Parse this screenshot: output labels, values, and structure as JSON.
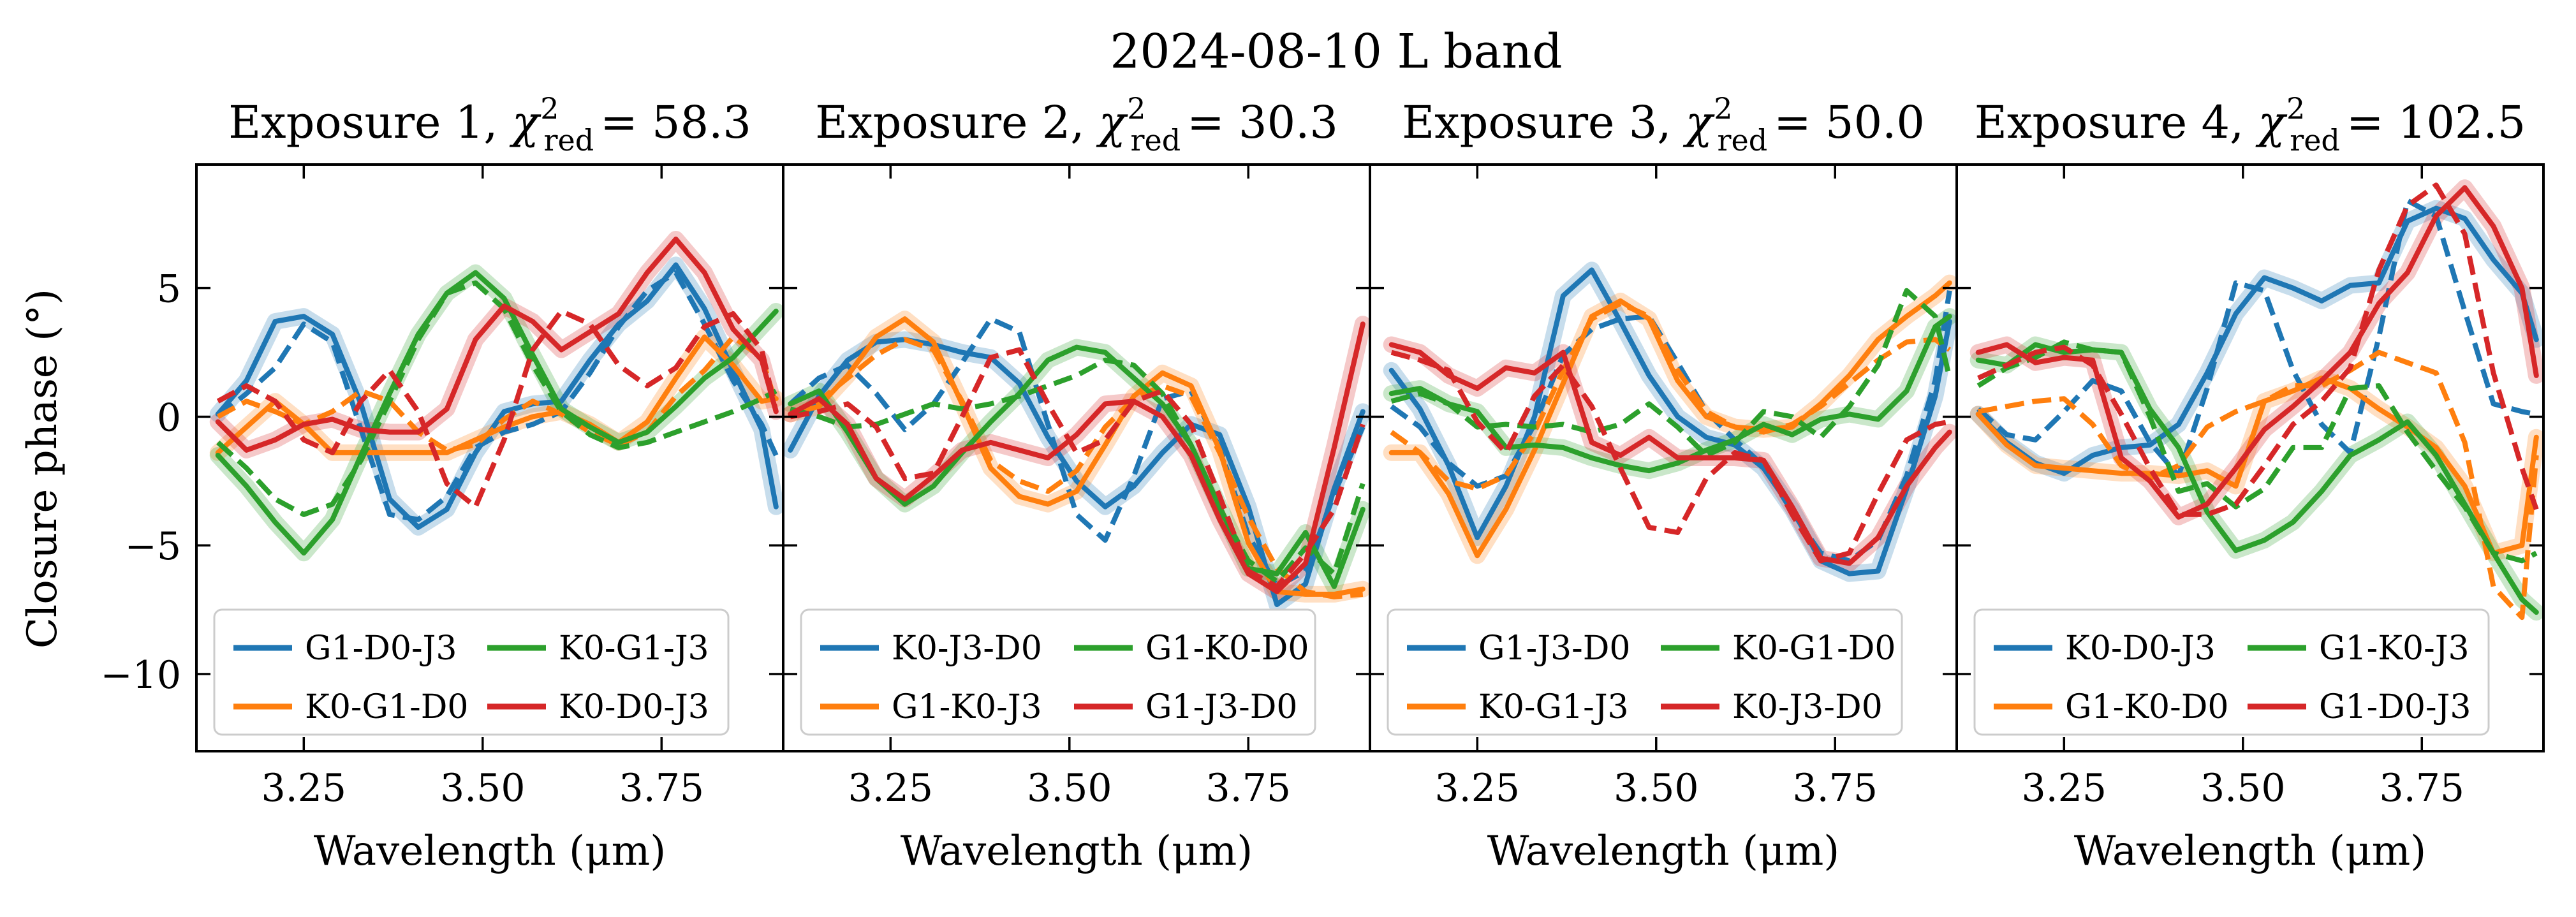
{
  "suptitle": "2024-08-10 L band",
  "ylabel": "Closure phase (°)",
  "xlabel": "Wavelength (μm)",
  "colors": {
    "blue": "#1f77b4",
    "orange": "#ff7f0e",
    "green": "#2ca02c",
    "red": "#d62728"
  },
  "chart_data": [
    {
      "type": "line",
      "title_prefix": "Exposure 1,",
      "chi2": "58.3",
      "xlim": [
        3.1,
        3.92
      ],
      "ylim": [
        -13,
        9.8
      ],
      "xticks": [
        3.25,
        3.5,
        3.75
      ],
      "xtick_labels": [
        "3.25",
        "3.50",
        "3.75"
      ],
      "yticks": [
        5,
        0,
        -5,
        -10
      ],
      "ytick_labels": [
        "5",
        "0",
        "−5",
        "−10"
      ],
      "x": [
        3.13,
        3.17,
        3.21,
        3.25,
        3.29,
        3.33,
        3.37,
        3.41,
        3.45,
        3.49,
        3.53,
        3.57,
        3.61,
        3.65,
        3.69,
        3.73,
        3.77,
        3.81,
        3.85,
        3.89,
        3.91
      ],
      "series": [
        {
          "name": "G1-D0-J3",
          "color": "#1f77b4",
          "data": [
            0.1,
            1.4,
            3.7,
            3.9,
            3.2,
            0.5,
            -3.2,
            -4.3,
            -3.6,
            -1.4,
            0.2,
            0.5,
            0.6,
            2.2,
            3.6,
            4.5,
            5.9,
            4.2,
            1.8,
            -0.5,
            -3.5
          ],
          "model": [
            0,
            0.9,
            1.9,
            3.6,
            2.9,
            -0.5,
            -3.8,
            -4.0,
            -3.1,
            -1.2,
            -0.6,
            -0.3,
            0.2,
            1.7,
            3.5,
            4.9,
            5.6,
            3.6,
            1.4,
            -0.3,
            -1.5
          ]
        },
        {
          "name": "K0-G1-D0",
          "color": "#ff7f0e",
          "data": [
            -1.4,
            -0.4,
            0.6,
            -0.3,
            -1.4,
            -1.4,
            -1.4,
            -1.4,
            -1.4,
            -0.9,
            -0.4,
            0.0,
            0.2,
            -0.3,
            -1.0,
            -0.2,
            1.5,
            3.1,
            2.0,
            0.6,
            0.7
          ],
          "model": [
            0,
            0.6,
            0.2,
            -0.3,
            0.2,
            1.0,
            0.6,
            -0.6,
            -1.3,
            -1.1,
            -0.1,
            0.6,
            0.1,
            -0.6,
            -1.1,
            -0.6,
            0.8,
            1.8,
            3.1,
            2.3,
            0.5
          ]
        },
        {
          "name": "K0-G1-J3",
          "color": "#2ca02c",
          "data": [
            -1.5,
            -2.7,
            -4.1,
            -5.3,
            -4.0,
            -1.5,
            0.9,
            3.2,
            4.8,
            5.6,
            4.6,
            2.4,
            0.3,
            -0.4,
            -1.0,
            -0.6,
            0.4,
            1.5,
            2.3,
            3.5,
            4.1
          ],
          "model": [
            -1.0,
            -2.0,
            -3.2,
            -3.8,
            -3.4,
            -1.7,
            0.6,
            3.0,
            4.8,
            5.2,
            4.2,
            2.0,
            0.2,
            -0.7,
            -1.2,
            -1.0,
            -0.6,
            -0.2,
            0.2,
            0.7,
            1.0
          ]
        },
        {
          "name": "K0-D0-J3",
          "color": "#d62728",
          "data": [
            -0.2,
            -1.3,
            -0.9,
            -0.3,
            -0.1,
            -0.5,
            -0.6,
            -0.6,
            0.3,
            3.0,
            4.3,
            3.7,
            2.6,
            3.3,
            4.0,
            5.6,
            6.9,
            5.6,
            3.4,
            2.2,
            0.2
          ],
          "model": [
            0.6,
            1.2,
            0.6,
            -0.9,
            -1.4,
            0.6,
            1.8,
            0.2,
            -2.6,
            -3.5,
            -0.9,
            2.6,
            4.1,
            3.6,
            2.0,
            1.2,
            1.9,
            3.5,
            4.0,
            2.6,
            0.2
          ]
        }
      ],
      "legend": [
        {
          "label": "G1-D0-J3",
          "color": "#1f77b4"
        },
        {
          "label": "K0-G1-J3",
          "color": "#2ca02c"
        },
        {
          "label": "K0-G1-D0",
          "color": "#ff7f0e"
        },
        {
          "label": "K0-D0-J3",
          "color": "#d62728"
        }
      ]
    },
    {
      "type": "line",
      "title_prefix": "Exposure 2,",
      "chi2": "30.3",
      "xlim": [
        3.1,
        3.92
      ],
      "ylim": [
        -13,
        9.8
      ],
      "xticks": [
        3.25,
        3.5,
        3.75
      ],
      "xtick_labels": [
        "3.25",
        "3.50",
        "3.75"
      ],
      "yticks": [
        5,
        0,
        -5,
        -10
      ],
      "ytick_labels": [
        "5",
        "0",
        "−5",
        "−10"
      ],
      "x": [
        3.11,
        3.15,
        3.19,
        3.23,
        3.27,
        3.31,
        3.35,
        3.39,
        3.43,
        3.47,
        3.51,
        3.55,
        3.59,
        3.63,
        3.67,
        3.71,
        3.75,
        3.79,
        3.83,
        3.87,
        3.91
      ],
      "series": [
        {
          "name": "K0-J3-D0",
          "color": "#1f77b4",
          "data": [
            -1.3,
            0.8,
            2.2,
            2.9,
            3.0,
            2.8,
            2.5,
            2.3,
            1.3,
            -0.8,
            -2.5,
            -3.5,
            -2.7,
            -1.4,
            -0.3,
            -0.7,
            -3.5,
            -7.3,
            -6.5,
            -2.8,
            0.2
          ],
          "model": [
            0.5,
            1.5,
            2.0,
            0.9,
            -0.5,
            0.5,
            2.1,
            3.8,
            3.3,
            -0.3,
            -3.8,
            -4.8,
            -2.3,
            0.7,
            1.0,
            -1.2,
            -4.6,
            -6.6,
            -6.0,
            -3.0,
            -0.4
          ]
        },
        {
          "name": "G1-K0-J3",
          "color": "#ff7f0e",
          "data": [
            0.1,
            0.4,
            1.6,
            3.1,
            3.8,
            2.9,
            0.5,
            -2.0,
            -3.1,
            -3.4,
            -2.9,
            -1.1,
            0.8,
            1.7,
            1.2,
            -1.3,
            -4.9,
            -6.8,
            -6.9,
            -6.9,
            -6.7
          ],
          "model": [
            0.1,
            0.6,
            1.5,
            2.4,
            3.0,
            2.6,
            0.6,
            -1.7,
            -2.5,
            -2.9,
            -2.1,
            -0.4,
            0.7,
            1.2,
            0.8,
            -1.4,
            -3.9,
            -5.9,
            -6.8,
            -7.0,
            -6.9
          ]
        },
        {
          "name": "G1-K0-D0",
          "color": "#2ca02c",
          "data": [
            0.5,
            1.0,
            -0.6,
            -2.4,
            -3.4,
            -2.7,
            -1.4,
            -0.2,
            0.9,
            2.2,
            2.7,
            2.5,
            1.5,
            0.5,
            -1.1,
            -3.5,
            -5.9,
            -6.1,
            -4.5,
            -6.6,
            -3.6
          ],
          "model": [
            0.3,
            0.0,
            -0.4,
            -0.3,
            0.1,
            0.5,
            0.3,
            0.5,
            0.8,
            1.2,
            1.6,
            2.2,
            2.0,
            0.9,
            -1.1,
            -3.6,
            -5.6,
            -6.4,
            -5.1,
            -6.1,
            -2.6
          ]
        },
        {
          "name": "G1-J3-D0",
          "color": "#d62728",
          "data": [
            0.1,
            0.7,
            -0.3,
            -2.4,
            -3.2,
            -2.3,
            -1.3,
            -1.0,
            -1.3,
            -1.6,
            -0.7,
            0.5,
            0.6,
            0.0,
            -1.5,
            -4.0,
            -6.1,
            -6.8,
            -5.7,
            -1.2,
            3.6
          ],
          "model": [
            0.0,
            0.2,
            0.5,
            -0.4,
            -2.4,
            -2.2,
            0.0,
            2.3,
            2.6,
            0.5,
            -1.4,
            -0.9,
            0.6,
            1.0,
            -0.3,
            -3.1,
            -6.0,
            -6.6,
            -5.3,
            -3.6,
            -0.3
          ]
        }
      ],
      "legend": [
        {
          "label": "K0-J3-D0",
          "color": "#1f77b4"
        },
        {
          "label": "G1-K0-D0",
          "color": "#2ca02c"
        },
        {
          "label": "G1-K0-J3",
          "color": "#ff7f0e"
        },
        {
          "label": "G1-J3-D0",
          "color": "#d62728"
        }
      ]
    },
    {
      "type": "line",
      "title_prefix": "Exposure 3,",
      "chi2": "50.0",
      "xlim": [
        3.1,
        3.92
      ],
      "ylim": [
        -13,
        9.8
      ],
      "xticks": [
        3.25,
        3.5,
        3.75
      ],
      "xtick_labels": [
        "3.25",
        "3.50",
        "3.75"
      ],
      "yticks": [
        5,
        0,
        -5,
        -10
      ],
      "ytick_labels": [
        "5",
        "0",
        "−5",
        "−10"
      ],
      "x": [
        3.13,
        3.17,
        3.21,
        3.25,
        3.29,
        3.33,
        3.37,
        3.41,
        3.45,
        3.49,
        3.53,
        3.57,
        3.61,
        3.65,
        3.69,
        3.73,
        3.77,
        3.81,
        3.85,
        3.89,
        3.91
      ],
      "series": [
        {
          "name": "G1-J3-D0",
          "color": "#1f77b4",
          "data": [
            1.8,
            0.3,
            -1.9,
            -4.7,
            -2.7,
            0.0,
            4.7,
            5.7,
            3.7,
            1.6,
            0.0,
            -0.8,
            -1.1,
            -2.0,
            -3.6,
            -5.6,
            -6.1,
            -6.0,
            -2.8,
            0.8,
            3.7
          ],
          "model": [
            0.4,
            -0.4,
            -1.8,
            -2.7,
            -2.3,
            -0.3,
            2.4,
            3.4,
            3.8,
            3.9,
            2.1,
            0.2,
            -0.9,
            -1.9,
            -3.7,
            -5.3,
            -5.6,
            -4.8,
            -2.3,
            1.4,
            4.9
          ]
        },
        {
          "name": "K0-G1-J3",
          "color": "#ff7f0e",
          "data": [
            -1.4,
            -1.4,
            -3.0,
            -5.4,
            -3.6,
            -1.3,
            1.3,
            3.9,
            4.5,
            3.8,
            1.4,
            0.0,
            -0.4,
            -0.5,
            -0.4,
            0.5,
            1.6,
            3.0,
            3.9,
            4.7,
            5.2
          ],
          "model": [
            -0.6,
            -1.4,
            -2.5,
            -2.8,
            -2.3,
            -0.6,
            1.8,
            3.8,
            4.4,
            3.9,
            1.8,
            0.2,
            -0.4,
            -0.6,
            -0.3,
            0.4,
            1.3,
            2.2,
            2.9,
            3.0,
            2.6
          ]
        },
        {
          "name": "K0-G1-D0",
          "color": "#2ca02c",
          "data": [
            0.9,
            1.1,
            0.5,
            0.2,
            -1.2,
            -1.1,
            -1.2,
            -1.6,
            -1.9,
            -2.1,
            -1.8,
            -1.3,
            -0.9,
            -0.3,
            -0.7,
            -0.1,
            0.1,
            -0.1,
            1.0,
            3.5,
            3.9
          ],
          "model": [
            0.6,
            0.9,
            0.5,
            -0.4,
            -0.3,
            -0.4,
            -0.3,
            -0.6,
            -0.3,
            0.5,
            -0.4,
            -1.5,
            -1.0,
            0.2,
            0.0,
            -0.8,
            0.4,
            2.0,
            4.9,
            3.9,
            1.5
          ]
        },
        {
          "name": "K0-J3-D0",
          "color": "#d62728",
          "data": [
            2.8,
            2.5,
            1.6,
            1.1,
            1.9,
            1.7,
            2.5,
            -1.0,
            -1.5,
            -0.8,
            -1.6,
            -1.6,
            -1.6,
            -1.7,
            -3.5,
            -5.5,
            -5.7,
            -4.7,
            -2.7,
            -1.2,
            -0.6
          ],
          "model": [
            2.5,
            2.2,
            1.8,
            -0.2,
            -1.4,
            0.8,
            2.0,
            0.4,
            -2.0,
            -4.3,
            -4.5,
            -2.4,
            -1.4,
            -1.7,
            -3.8,
            -5.6,
            -5.3,
            -3.0,
            -0.9,
            -0.3,
            -0.2
          ]
        }
      ],
      "legend": [
        {
          "label": "G1-J3-D0",
          "color": "#1f77b4"
        },
        {
          "label": "K0-G1-D0",
          "color": "#2ca02c"
        },
        {
          "label": "K0-G1-J3",
          "color": "#ff7f0e"
        },
        {
          "label": "K0-J3-D0",
          "color": "#d62728"
        }
      ]
    },
    {
      "type": "line",
      "title_prefix": "Exposure 4,",
      "chi2": "102.5",
      "xlim": [
        3.1,
        3.92
      ],
      "ylim": [
        -13,
        9.8
      ],
      "xticks": [
        3.25,
        3.5,
        3.75
      ],
      "xtick_labels": [
        "3.25",
        "3.50",
        "3.75"
      ],
      "yticks": [
        5,
        0,
        -5,
        -10
      ],
      "ytick_labels": [
        "5",
        "0",
        "−5",
        "−10"
      ],
      "x": [
        3.13,
        3.17,
        3.21,
        3.25,
        3.29,
        3.33,
        3.37,
        3.41,
        3.45,
        3.49,
        3.53,
        3.57,
        3.61,
        3.65,
        3.69,
        3.73,
        3.77,
        3.81,
        3.85,
        3.89,
        3.91
      ],
      "series": [
        {
          "name": "K0-D0-J3",
          "color": "#1f77b4",
          "data": [
            0.1,
            -1.0,
            -1.8,
            -2.2,
            -1.5,
            -1.2,
            -1.1,
            -0.3,
            1.7,
            4.0,
            5.4,
            5.0,
            4.5,
            5.1,
            5.2,
            7.6,
            8.1,
            7.7,
            6.1,
            4.8,
            3.0
          ],
          "model": [
            0.3,
            -0.7,
            -0.9,
            0.2,
            1.4,
            1.0,
            -1.0,
            -2.3,
            1.1,
            5.2,
            4.9,
            1.8,
            -0.3,
            -1.4,
            3.1,
            8.4,
            7.8,
            4.1,
            0.5,
            0.2,
            0.1
          ]
        },
        {
          "name": "G1-K0-D0",
          "color": "#ff7f0e",
          "data": [
            0.1,
            -1.1,
            -1.9,
            -2.0,
            -2.1,
            -2.2,
            -2.2,
            -2.3,
            -2.1,
            -2.7,
            0.6,
            1.0,
            1.5,
            1.1,
            0.3,
            -0.4,
            -1.2,
            -2.7,
            -5.3,
            -5.0,
            -0.8
          ],
          "model": [
            0.2,
            0.4,
            0.6,
            0.7,
            -0.3,
            -1.9,
            -2.4,
            -1.9,
            -0.4,
            0.2,
            0.6,
            1.2,
            1.2,
            1.8,
            2.5,
            2.1,
            1.7,
            -1.0,
            -6.6,
            -7.8,
            -1.5
          ]
        },
        {
          "name": "G1-K0-J3",
          "color": "#2ca02c",
          "data": [
            2.2,
            2.0,
            2.8,
            2.5,
            2.6,
            2.5,
            0.3,
            -1.2,
            -3.7,
            -5.2,
            -4.8,
            -4.1,
            -2.9,
            -1.5,
            -0.9,
            -0.2,
            -1.5,
            -3.4,
            -5.3,
            -7.1,
            -7.6
          ],
          "model": [
            1.2,
            1.9,
            2.3,
            2.9,
            2.6,
            2.5,
            0.0,
            -2.9,
            -2.6,
            -3.5,
            -2.8,
            -1.2,
            -1.2,
            1.1,
            1.2,
            -0.6,
            -2.1,
            -3.5,
            -5.3,
            -5.6,
            -5.3
          ]
        },
        {
          "name": "G1-D0-J3",
          "color": "#d62728",
          "data": [
            2.5,
            2.8,
            2.1,
            2.3,
            2.2,
            -1.6,
            -2.5,
            -3.9,
            -3.4,
            -2.0,
            -0.5,
            0.4,
            1.4,
            2.5,
            4.4,
            5.6,
            7.8,
            8.9,
            7.4,
            5.0,
            1.6
          ],
          "model": [
            1.5,
            2.0,
            2.5,
            2.7,
            2.0,
            0.1,
            -2.0,
            -3.8,
            -3.8,
            -3.4,
            -1.9,
            -0.3,
            0.6,
            1.9,
            5.7,
            8.2,
            9.0,
            7.1,
            1.7,
            -2.0,
            -3.6
          ]
        }
      ],
      "legend": [
        {
          "label": "K0-D0-J3",
          "color": "#1f77b4"
        },
        {
          "label": "G1-K0-J3",
          "color": "#2ca02c"
        },
        {
          "label": "G1-K0-D0",
          "color": "#ff7f0e"
        },
        {
          "label": "G1-D0-J3",
          "color": "#d62728"
        }
      ]
    }
  ]
}
